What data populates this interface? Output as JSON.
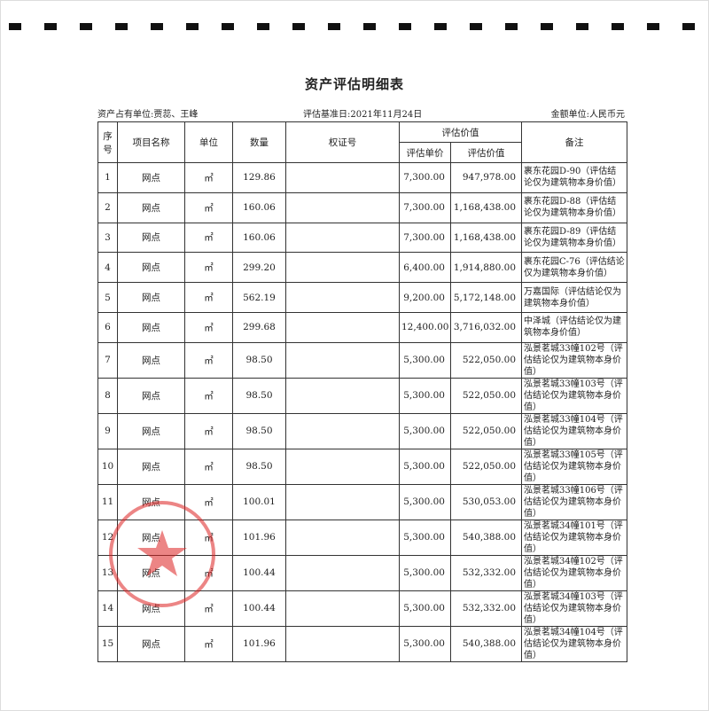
{
  "header": {
    "title": "资产评估明细表",
    "owner": "资产占有单位:贾蕊、王峰",
    "date": "评估基准日:2021年11月24日",
    "unit": "金额单位:人民币元"
  },
  "table": {
    "headers": {
      "no": "序号",
      "name": "项目名称",
      "unit": "单位",
      "qty": "数量",
      "cert": "权证号",
      "value_group": "评估价值",
      "price": "评估单价",
      "value": "评估价值",
      "note": "备注"
    },
    "rows": [
      [
        "1",
        "网点",
        "㎡",
        "129.86",
        "",
        "7,300.00",
        "947,978.00",
        "裹东花园D-90（评估结论仅为建筑物本身价值）"
      ],
      [
        "2",
        "网点",
        "㎡",
        "160.06",
        "",
        "7,300.00",
        "1,168,438.00",
        "裹东花园D-88（评估结论仅为建筑物本身价值）"
      ],
      [
        "3",
        "网点",
        "㎡",
        "160.06",
        "",
        "7,300.00",
        "1,168,438.00",
        "裹东花园D-89（评估结论仅为建筑物本身价值）"
      ],
      [
        "4",
        "网点",
        "㎡",
        "299.20",
        "",
        "6,400.00",
        "1,914,880.00",
        "裹东花园C-76（评估结论仅为建筑物本身价值）"
      ],
      [
        "5",
        "网点",
        "㎡",
        "562.19",
        "",
        "9,200.00",
        "5,172,148.00",
        "万嘉国际（评估结论仅为建筑物本身价值）"
      ],
      [
        "6",
        "网点",
        "㎡",
        "299.68",
        "",
        "12,400.00",
        "3,716,032.00",
        "中泽城（评估结论仅为建筑物本身价值）"
      ],
      [
        "7",
        "网点",
        "㎡",
        "98.50",
        "",
        "5,300.00",
        "522,050.00",
        "泓景茗城33幢102号（评估结论仅为建筑物本身价值）"
      ],
      [
        "8",
        "网点",
        "㎡",
        "98.50",
        "",
        "5,300.00",
        "522,050.00",
        "泓景茗城33幢103号（评估结论仅为建筑物本身价值）"
      ],
      [
        "9",
        "网点",
        "㎡",
        "98.50",
        "",
        "5,300.00",
        "522,050.00",
        "泓景茗城33幢104号（评估结论仅为建筑物本身价值）"
      ],
      [
        "10",
        "网点",
        "㎡",
        "98.50",
        "",
        "5,300.00",
        "522,050.00",
        "泓景茗城33幢105号（评估结论仅为建筑物本身价值）"
      ],
      [
        "11",
        "网点",
        "㎡",
        "100.01",
        "",
        "5,300.00",
        "530,053.00",
        "泓景茗城33幢106号（评估结论仅为建筑物本身价值）"
      ],
      [
        "12",
        "网点",
        "㎡",
        "101.96",
        "",
        "5,300.00",
        "540,388.00",
        "泓景茗城34幢101号（评估结论仅为建筑物本身价值）"
      ],
      [
        "13",
        "网点",
        "㎡",
        "100.44",
        "",
        "5,300.00",
        "532,332.00",
        "泓景茗城34幢102号（评估结论仅为建筑物本身价值）"
      ],
      [
        "14",
        "网点",
        "㎡",
        "100.44",
        "",
        "5,300.00",
        "532,332.00",
        "泓景茗城34幢103号（评估结论仅为建筑物本身价值）"
      ],
      [
        "15",
        "网点",
        "㎡",
        "101.96",
        "",
        "5,300.00",
        "540,388.00",
        "泓景茗城34幢104号（评估结论仅为建筑物本身价值）"
      ]
    ]
  }
}
